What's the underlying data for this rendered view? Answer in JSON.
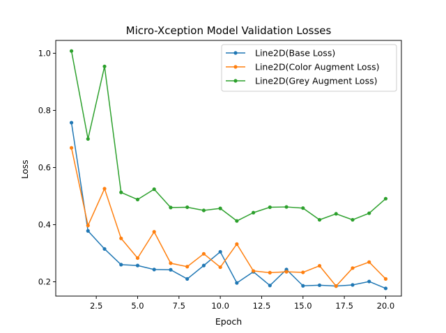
{
  "chart_data": {
    "type": "line",
    "title": "Micro-Xception Model Validation Losses",
    "xlabel": "Epoch",
    "ylabel": "Loss",
    "xlim": [
      0.05,
      20.95
    ],
    "ylim": [
      0.15,
      1.045
    ],
    "xticks": [
      2.5,
      5.0,
      7.5,
      10.0,
      12.5,
      15.0,
      17.5,
      20.0
    ],
    "xtick_labels": [
      "2.5",
      "5.0",
      "7.5",
      "10.0",
      "12.5",
      "15.0",
      "17.5",
      "20.0"
    ],
    "yticks": [
      0.2,
      0.4,
      0.6,
      0.8,
      1.0
    ],
    "ytick_labels": [
      "0.2",
      "0.4",
      "0.6",
      "0.8",
      "1.0"
    ],
    "grid": false,
    "legend_position": "top-right",
    "x": [
      1,
      2,
      3,
      4,
      5,
      6,
      7,
      8,
      9,
      10,
      11,
      12,
      13,
      14,
      15,
      16,
      17,
      18,
      19,
      20
    ],
    "series": [
      {
        "name": "Line2D(Base Loss)",
        "color": "#1f77b4",
        "values": [
          0.757,
          0.378,
          0.315,
          0.26,
          0.257,
          0.243,
          0.242,
          0.21,
          0.257,
          0.305,
          0.196,
          0.235,
          0.187,
          0.243,
          0.186,
          0.188,
          0.185,
          0.189,
          0.201,
          0.177
        ]
      },
      {
        "name": "Line2D(Color Augment Loss)",
        "color": "#ff7f0e",
        "values": [
          0.669,
          0.397,
          0.526,
          0.352,
          0.283,
          0.375,
          0.265,
          0.253,
          0.298,
          0.251,
          0.332,
          0.238,
          0.232,
          0.235,
          0.233,
          0.256,
          0.185,
          0.248,
          0.269,
          0.21
        ]
      },
      {
        "name": "Line2D(Grey Augment Loss)",
        "color": "#2ca02c",
        "values": [
          1.008,
          0.7,
          0.954,
          0.513,
          0.488,
          0.524,
          0.46,
          0.461,
          0.45,
          0.457,
          0.413,
          0.442,
          0.461,
          0.462,
          0.458,
          0.417,
          0.438,
          0.417,
          0.44,
          0.491
        ]
      }
    ]
  }
}
